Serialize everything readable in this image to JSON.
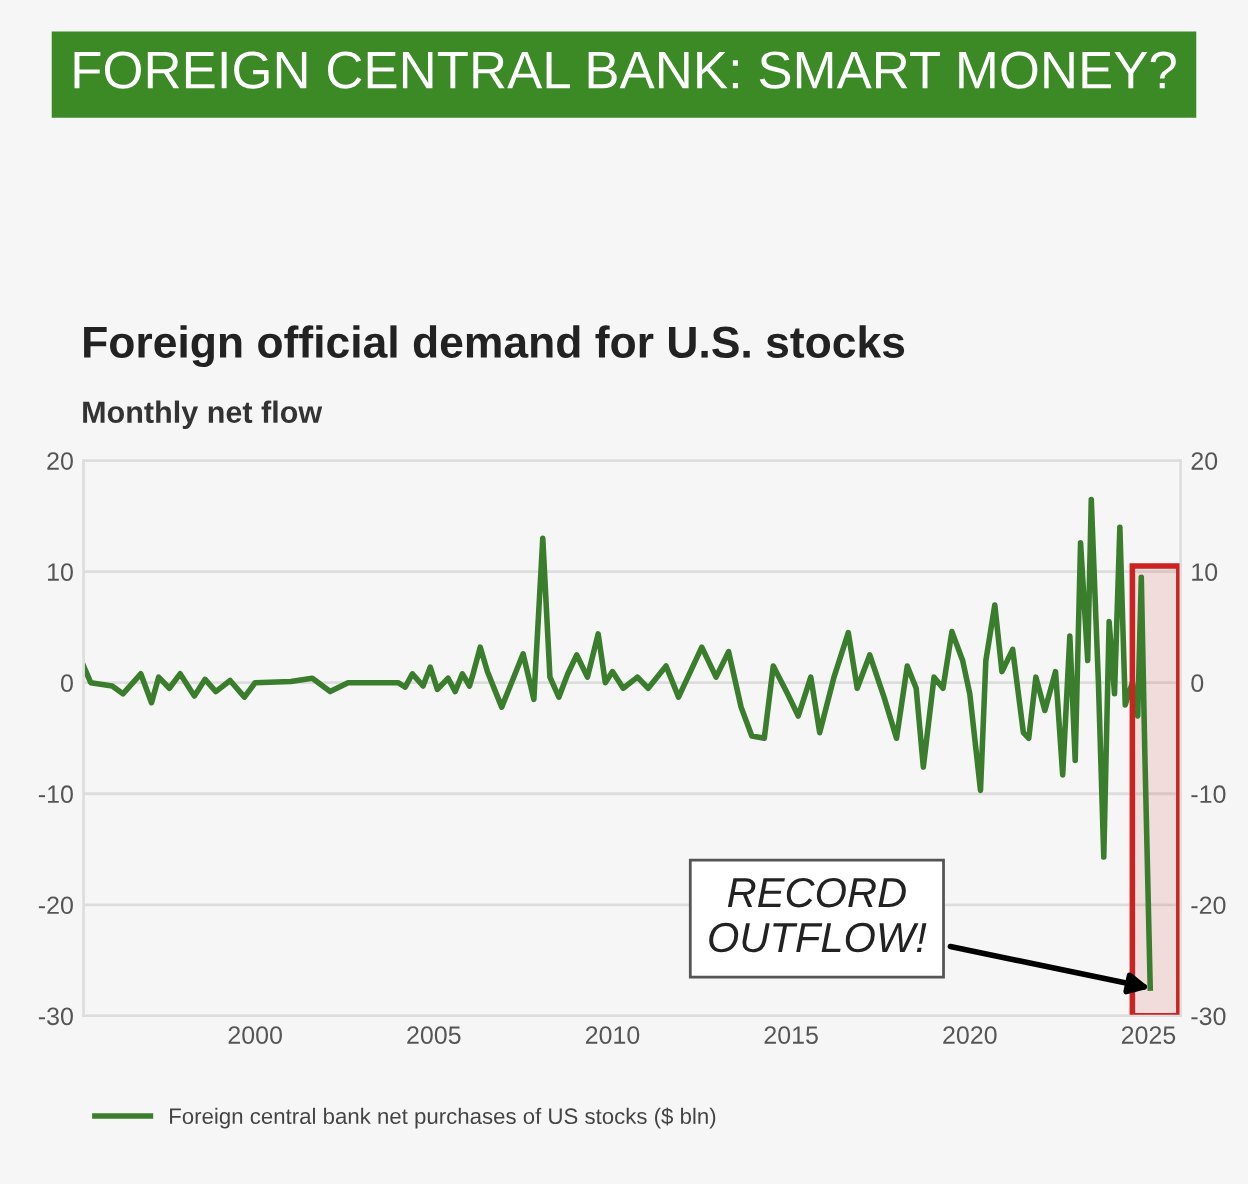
{
  "chart_data": {
    "type": "line",
    "title": "FOREIGN CENTRAL BANK: SMART MONEY?",
    "subtitle": "Foreign official demand for U.S. stocks",
    "ylabel": "Monthly net flow",
    "x": [
      1995.2,
      1995.4,
      1996.0,
      1996.3,
      1996.8,
      1997.1,
      1997.3,
      1997.6,
      1997.9,
      1998.3,
      1998.6,
      1998.9,
      1999.3,
      1999.7,
      2000.0,
      2001.0,
      2001.6,
      2002.1,
      2002.6,
      2004.0,
      2004.2,
      2004.4,
      2004.7,
      2004.9,
      2005.1,
      2005.4,
      2005.6,
      2005.8,
      2006.0,
      2006.1,
      2006.3,
      2006.5,
      2006.7,
      2006.9,
      2007.2,
      2007.5,
      2007.8,
      2008.05,
      2008.25,
      2008.5,
      2008.75,
      2009.0,
      2009.3,
      2009.6,
      2009.8,
      2010.0,
      2010.3,
      2010.7,
      2011.0,
      2011.5,
      2011.85,
      2012.5,
      2012.9,
      2013.25,
      2013.6,
      2013.9,
      2014.25,
      2014.5,
      2014.9,
      2015.2,
      2015.55,
      2015.8,
      2016.2,
      2016.6,
      2016.85,
      2017.2,
      2017.6,
      2017.95,
      2018.25,
      2018.5,
      2018.7,
      2019.0,
      2019.25,
      2019.5,
      2019.8,
      2020.0,
      2020.3,
      2020.45,
      2020.7,
      2020.9,
      2021.2,
      2021.5,
      2021.65,
      2021.85,
      2022.1,
      2022.4,
      2022.6,
      2022.8,
      2022.95,
      2023.1,
      2023.3,
      2023.4,
      2023.6,
      2023.75,
      2023.9,
      2024.05,
      2024.2,
      2024.35,
      2024.55,
      2024.7,
      2024.8,
      2024.9,
      2025.05
    ],
    "series": [
      {
        "name": "Foreign central bank net purchases of US stocks ($ bln)",
        "color": "#3a7d2c",
        "values": [
          1.5,
          0,
          -0.3,
          -1,
          0.8,
          -1.8,
          0.5,
          -0.5,
          0.8,
          -1.2,
          0.3,
          -0.8,
          0.2,
          -1.3,
          0,
          0.1,
          0.4,
          -0.8,
          0,
          0,
          -0.4,
          0.8,
          -0.3,
          1.4,
          -0.6,
          0.4,
          -0.8,
          0.8,
          -0.3,
          0.8,
          3.2,
          1,
          -0.6,
          -2.2,
          0.2,
          2.6,
          -1.5,
          13,
          0.5,
          -1.3,
          0.8,
          2.5,
          0.5,
          4.4,
          0,
          1,
          -0.5,
          0.5,
          -0.5,
          1.5,
          -1.3,
          3.2,
          0.5,
          2.8,
          -2.2,
          -4.8,
          -5,
          1.5,
          -1,
          -3,
          0.5,
          -4.5,
          0.5,
          4.5,
          -0.5,
          2.5,
          -1.3,
          -5,
          1.5,
          -0.5,
          -7.6,
          0.5,
          -0.5,
          4.6,
          2,
          -1,
          -9.7,
          2,
          7,
          1,
          3,
          -4.5,
          -5,
          0.5,
          -2.5,
          1,
          -8.3,
          4.2,
          -7,
          12.6,
          2,
          16.5,
          0,
          -15.7,
          5.5,
          -1,
          14,
          -2,
          0,
          -3,
          9.5,
          -6.5,
          -27.5
        ]
      }
    ],
    "xlim": [
      1995.2,
      2025.9
    ],
    "xticks": [
      2000,
      2005,
      2010,
      2015,
      2020,
      2025
    ],
    "ylim": [
      -30,
      20
    ],
    "yticks": [
      -30,
      -20,
      -10,
      0,
      10,
      20
    ],
    "y2lim": [
      -30,
      20
    ],
    "y2ticks": [
      -30,
      -20,
      -10,
      0,
      10,
      20
    ],
    "grid": "y",
    "legend": "bottom left",
    "marker": "none",
    "line_style": "solid",
    "bands": [
      {
        "axis": "x",
        "from": 2024.55,
        "to": 2025.85,
        "color": "#cc2222"
      }
    ],
    "annotations": [
      {
        "text": "RECORD\nOUTFLOW!",
        "x": 2025.05,
        "y": -27.5
      }
    ]
  }
}
